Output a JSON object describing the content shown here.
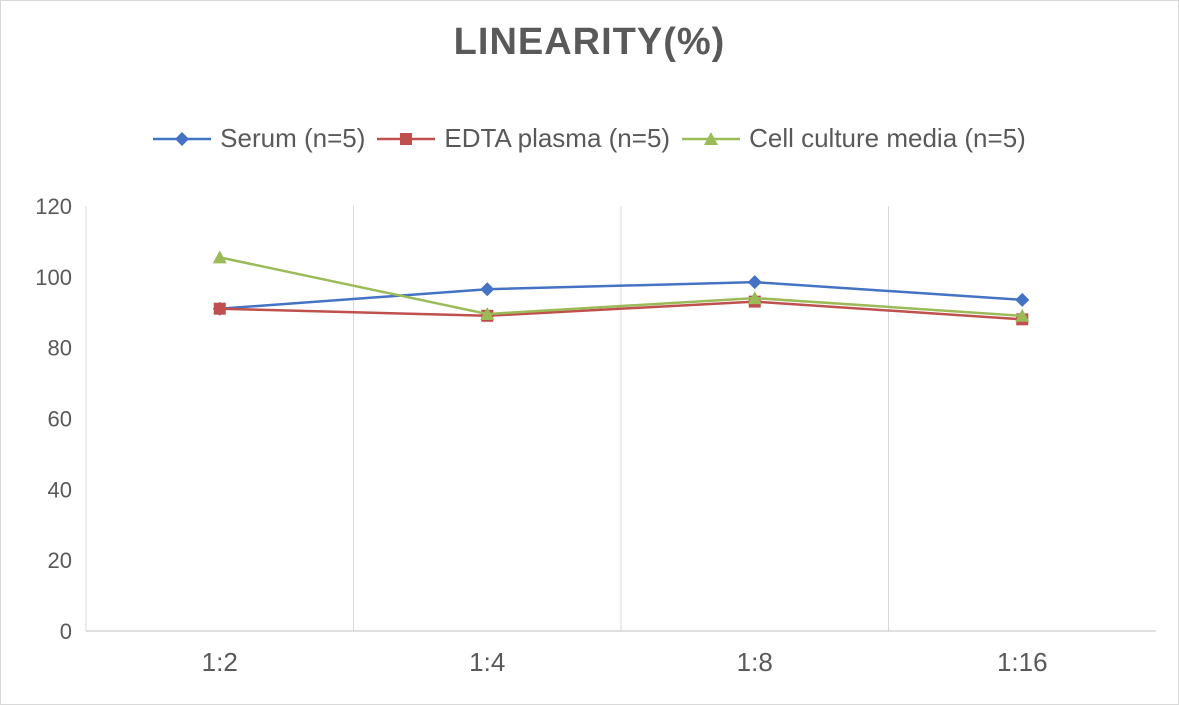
{
  "chart_data": {
    "type": "line",
    "title": "LINEARITY(%)",
    "categories": [
      "1:2",
      "1:4",
      "1:8",
      "1:16"
    ],
    "series": [
      {
        "name": "Serum (n=5)",
        "color": "#4472C4",
        "marker": "diamond",
        "values": [
          91,
          96.5,
          98.5,
          93.5
        ]
      },
      {
        "name": "EDTA plasma (n=5)",
        "color": "#C0504D",
        "marker": "square",
        "values": [
          91,
          89,
          93,
          88
        ]
      },
      {
        "name": "Cell culture media (n=5)",
        "color": "#9BBB59",
        "marker": "triangle",
        "values": [
          105.5,
          89.5,
          94,
          89
        ]
      }
    ],
    "ylim": [
      0,
      120
    ],
    "yticks": [
      0,
      20,
      40,
      60,
      80,
      100,
      120
    ],
    "grid": "vertical-only",
    "gridline_color": "#d9d9d9",
    "axis_color": "#bfbfbf",
    "text_color": "#595959",
    "legend_position": "top"
  }
}
